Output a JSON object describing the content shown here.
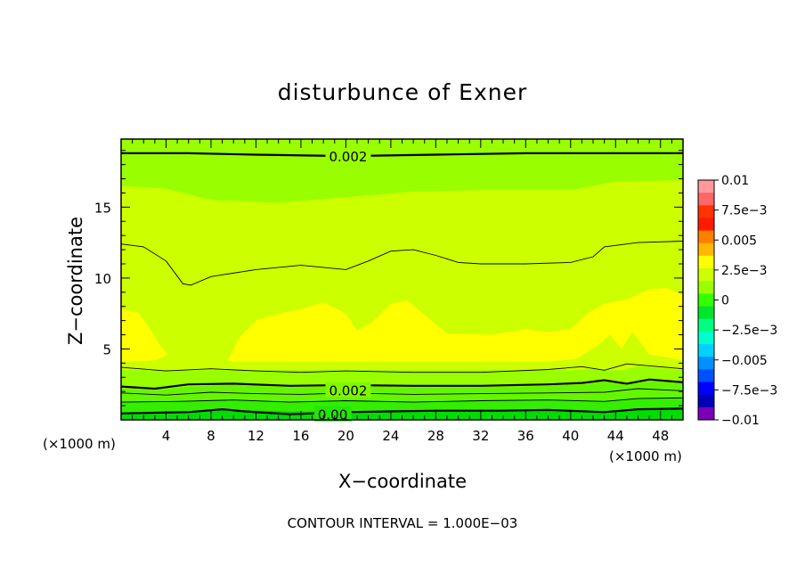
{
  "chart_data": {
    "type": "contour",
    "title": "disturbunce of Exner",
    "xlabel": "X−coordinate",
    "ylabel": "Z−coordinate",
    "x_unit": "(×1000 m)",
    "y_unit": "(×1000 m)",
    "xlim": [
      0,
      50
    ],
    "ylim": [
      0,
      19.8
    ],
    "x_ticks": [
      4,
      8,
      12,
      16,
      20,
      24,
      28,
      32,
      36,
      40,
      44,
      48
    ],
    "y_ticks": [
      5,
      10,
      15
    ],
    "contour_interval_text": "CONTOUR INTERVAL = 1.000E−03",
    "contour_labels": [
      {
        "text": "0.002",
        "x": 18.5,
        "y": 18.6
      },
      {
        "text": "0.002",
        "x": 18.5,
        "y": 2.1
      },
      {
        "text": "0.00",
        "x": 17.5,
        "y": 0.4
      }
    ],
    "colorbar": {
      "labels": [
        "0.01",
        "7.5e−3",
        "0.005",
        "2.5e−3",
        "0",
        "−2.5e−3",
        "−0.005",
        "−7.5e−3",
        "−0.01"
      ],
      "colors": [
        "#ff9999",
        "#ff6666",
        "#ff3300",
        "#ff1a00",
        "#ff7f00",
        "#ffb800",
        "#ffff00",
        "#ccff00",
        "#99ff00",
        "#33ff00",
        "#00e52e",
        "#00ff80",
        "#00ffcc",
        "#00d2ff",
        "#0090ff",
        "#0050ff",
        "#0000ff",
        "#0000b8",
        "#7a00b8"
      ]
    },
    "levels": [
      {
        "name": "band-le-0",
        "color": "#00dd00",
        "boundary_top": [
          [
            0,
            0.5
          ],
          [
            6,
            0.6
          ],
          [
            10,
            0.7
          ],
          [
            15,
            0.6
          ],
          [
            20,
            0.6
          ],
          [
            26,
            0.65
          ],
          [
            32,
            0.65
          ],
          [
            38,
            0.7
          ],
          [
            43,
            0.6
          ],
          [
            46,
            0.75
          ],
          [
            50,
            0.8
          ]
        ]
      },
      {
        "name": "band-0-1e-3",
        "color": "#33ee00",
        "boundary_top": [
          [
            0,
            1.3
          ],
          [
            6,
            1.35
          ],
          [
            10,
            1.45
          ],
          [
            15,
            1.3
          ],
          [
            20,
            1.4
          ],
          [
            26,
            1.3
          ],
          [
            32,
            1.4
          ],
          [
            38,
            1.45
          ],
          [
            43,
            1.35
          ],
          [
            46,
            1.55
          ],
          [
            50,
            1.6
          ]
        ]
      },
      {
        "name": "band-1e-3-2e-3",
        "color": "#66f500",
        "boundary_top": [
          [
            0,
            2.2
          ],
          [
            3,
            2.1
          ],
          [
            6,
            2.35
          ],
          [
            10,
            2.45
          ],
          [
            15,
            2.3
          ],
          [
            20,
            2.35
          ],
          [
            26,
            2.3
          ],
          [
            32,
            2.3
          ],
          [
            38,
            2.4
          ],
          [
            41,
            2.5
          ],
          [
            43,
            2.7
          ],
          [
            45,
            2.5
          ],
          [
            47,
            2.75
          ],
          [
            50,
            2.6
          ]
        ]
      },
      {
        "name": "band-2e-3-3e-3",
        "color": "#99ff00",
        "boundary_top": [
          [
            0,
            3.5
          ],
          [
            4,
            3.3
          ],
          [
            8,
            3.45
          ],
          [
            12,
            3.3
          ],
          [
            16,
            3.2
          ],
          [
            20,
            3.3
          ],
          [
            26,
            3.2
          ],
          [
            32,
            3.2
          ],
          [
            38,
            3.35
          ],
          [
            42,
            3.6
          ],
          [
            43.5,
            3.2
          ],
          [
            46,
            3.8
          ],
          [
            50,
            3.5
          ]
        ]
      },
      {
        "name": "band-upper-green",
        "color": "#99ff00",
        "boundary_top": [
          [
            0,
            19.8
          ],
          [
            50,
            19.8
          ]
        ]
      }
    ],
    "contours": [
      {
        "name": "contour-top-0.002",
        "thick": true,
        "points": [
          [
            0,
            18.8
          ],
          [
            6,
            18.8
          ],
          [
            12,
            18.7
          ],
          [
            20,
            18.6
          ],
          [
            28,
            18.7
          ],
          [
            36,
            18.8
          ],
          [
            44,
            18.8
          ],
          [
            50,
            18.8
          ]
        ]
      },
      {
        "name": "contour-12-lobe",
        "thick": false,
        "points": [
          [
            0,
            12.4
          ],
          [
            2,
            12.2
          ],
          [
            4,
            11.2
          ],
          [
            5.5,
            9.6
          ],
          [
            6.2,
            9.5
          ],
          [
            8,
            10.1
          ],
          [
            12,
            10.6
          ],
          [
            16,
            10.9
          ],
          [
            20,
            10.6
          ],
          [
            22,
            11.2
          ],
          [
            24,
            11.9
          ],
          [
            26,
            12.0
          ],
          [
            28,
            11.6
          ],
          [
            30,
            11.1
          ],
          [
            32,
            11.0
          ],
          [
            36,
            11.0
          ],
          [
            40,
            11.1
          ],
          [
            42,
            11.5
          ],
          [
            43,
            12.2
          ],
          [
            46,
            12.5
          ],
          [
            50,
            12.6
          ]
        ]
      },
      {
        "name": "contour-3.5",
        "thick": false,
        "points": [
          [
            0,
            3.7
          ],
          [
            4,
            3.45
          ],
          [
            8,
            3.6
          ],
          [
            12,
            3.45
          ],
          [
            16,
            3.35
          ],
          [
            20,
            3.45
          ],
          [
            26,
            3.35
          ],
          [
            32,
            3.35
          ],
          [
            38,
            3.55
          ],
          [
            41,
            3.75
          ],
          [
            43,
            3.5
          ],
          [
            45,
            3.95
          ],
          [
            50,
            3.6
          ]
        ]
      },
      {
        "name": "contour-2.6-thick",
        "thick": true,
        "points": [
          [
            0,
            2.35
          ],
          [
            3,
            2.2
          ],
          [
            6,
            2.5
          ],
          [
            10,
            2.55
          ],
          [
            15,
            2.4
          ],
          [
            20,
            2.45
          ],
          [
            26,
            2.4
          ],
          [
            32,
            2.4
          ],
          [
            38,
            2.5
          ],
          [
            41,
            2.6
          ],
          [
            43,
            2.8
          ],
          [
            45,
            2.55
          ],
          [
            47,
            2.85
          ],
          [
            50,
            2.65
          ]
        ]
      },
      {
        "name": "contour-1.8",
        "thick": false,
        "points": [
          [
            0,
            1.9
          ],
          [
            4,
            1.75
          ],
          [
            8,
            1.95
          ],
          [
            12,
            1.85
          ],
          [
            16,
            1.8
          ],
          [
            20,
            1.9
          ],
          [
            26,
            1.8
          ],
          [
            32,
            1.85
          ],
          [
            38,
            1.9
          ],
          [
            43,
            1.95
          ],
          [
            46,
            2.2
          ],
          [
            50,
            2.05
          ]
        ]
      },
      {
        "name": "contour-1.2",
        "thick": false,
        "points": [
          [
            0,
            1.25
          ],
          [
            5,
            1.3
          ],
          [
            10,
            1.4
          ],
          [
            15,
            1.25
          ],
          [
            20,
            1.35
          ],
          [
            26,
            1.25
          ],
          [
            32,
            1.35
          ],
          [
            38,
            1.4
          ],
          [
            43,
            1.3
          ],
          [
            46,
            1.5
          ],
          [
            50,
            1.55
          ]
        ]
      },
      {
        "name": "contour-0.5-thick",
        "thick": true,
        "points": [
          [
            0,
            0.45
          ],
          [
            3,
            0.5
          ],
          [
            6,
            0.55
          ],
          [
            9,
            0.75
          ],
          [
            11,
            0.6
          ],
          [
            15,
            0.4
          ],
          [
            17,
            0.45
          ],
          [
            20,
            0.55
          ],
          [
            24,
            0.6
          ],
          [
            28,
            0.65
          ],
          [
            34,
            0.65
          ],
          [
            38,
            0.7
          ],
          [
            43,
            0.55
          ],
          [
            46,
            0.75
          ],
          [
            50,
            0.8
          ]
        ]
      }
    ],
    "regions": [
      {
        "name": "region-upper-yellowgreen",
        "color": "#ccff00",
        "top": [
          [
            0,
            16.5
          ],
          [
            4,
            16.3
          ],
          [
            8,
            15.5
          ],
          [
            14,
            15.3
          ],
          [
            20,
            15.7
          ],
          [
            26,
            16.1
          ],
          [
            32,
            16.2
          ],
          [
            40,
            16.2
          ],
          [
            44,
            16.8
          ],
          [
            50,
            16.9
          ]
        ],
        "bottom": [
          [
            0,
            3.5
          ],
          [
            50,
            3.5
          ]
        ]
      },
      {
        "name": "region-lower-yellowgreen",
        "color": "#ccff00",
        "top": [
          [
            0,
            16.5
          ],
          [
            50,
            16.9
          ]
        ],
        "bottom": [
          [
            0,
            3.5
          ],
          [
            50,
            3.5
          ]
        ]
      }
    ],
    "yellow_blobs": [
      {
        "name": "yellow-left-lobe",
        "points": [
          [
            0,
            7.8
          ],
          [
            1.5,
            7.6
          ],
          [
            2.5,
            6.5
          ],
          [
            3.5,
            5.2
          ],
          [
            4.2,
            4.6
          ],
          [
            3,
            4.2
          ],
          [
            1,
            4.1
          ],
          [
            0,
            4.1
          ]
        ]
      },
      {
        "name": "yellow-main",
        "points": [
          [
            9.5,
            4.2
          ],
          [
            10.5,
            5.8
          ],
          [
            12,
            7.0
          ],
          [
            14,
            7.5
          ],
          [
            16,
            7.8
          ],
          [
            18,
            8.3
          ],
          [
            20,
            7.5
          ],
          [
            21,
            6.3
          ],
          [
            22.5,
            7.0
          ],
          [
            24,
            8.2
          ],
          [
            25.5,
            8.4
          ],
          [
            27,
            7.4
          ],
          [
            29,
            6.1
          ],
          [
            33,
            6.0
          ],
          [
            36,
            6.4
          ],
          [
            38,
            6.2
          ],
          [
            40,
            6.4
          ],
          [
            41.5,
            7.5
          ],
          [
            43,
            8.2
          ],
          [
            45,
            8.5
          ],
          [
            47,
            9.2
          ],
          [
            48.5,
            9.3
          ],
          [
            50,
            8.8
          ],
          [
            50,
            4.2
          ],
          [
            47,
            4.6
          ],
          [
            45.5,
            6.2
          ],
          [
            44.5,
            5.0
          ],
          [
            43.5,
            6.0
          ],
          [
            42.5,
            5.3
          ],
          [
            41.5,
            4.8
          ],
          [
            40.5,
            4.3
          ],
          [
            38,
            4.1
          ],
          [
            30,
            4.1
          ],
          [
            20,
            4.1
          ],
          [
            10,
            4.1
          ]
        ]
      }
    ]
  }
}
